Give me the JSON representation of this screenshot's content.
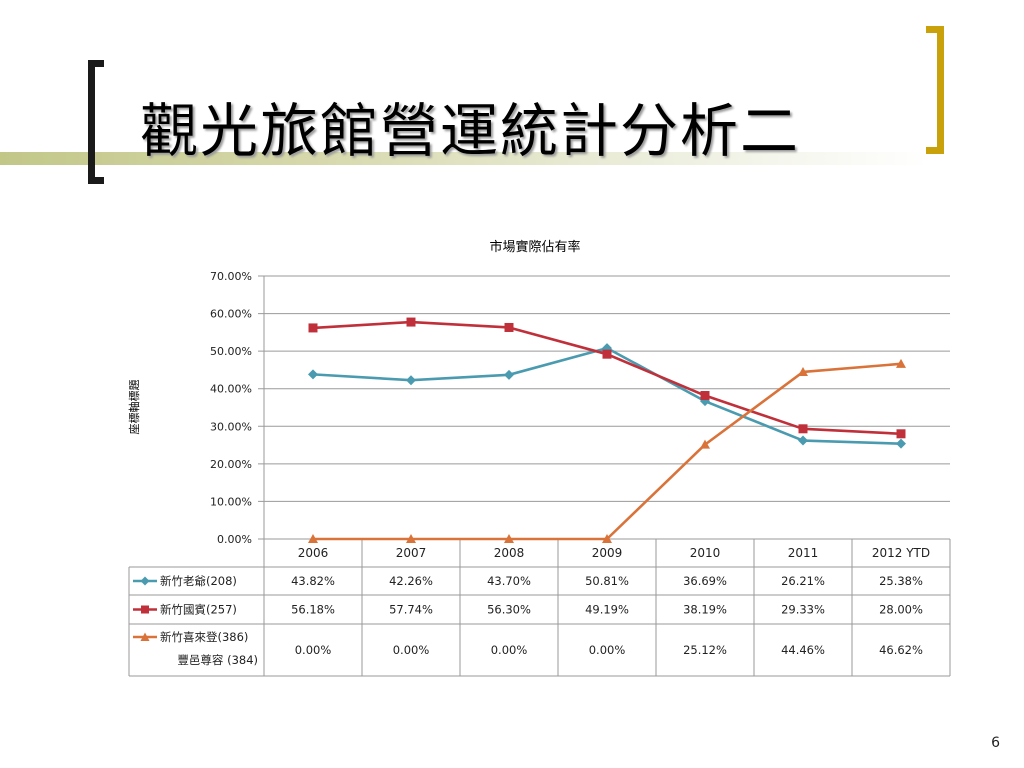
{
  "slide": {
    "title": "觀光旅館營運統計分析二",
    "page_number": "6",
    "accent_gold": "#c9a10a",
    "bracket_dark": "#1a1a1a"
  },
  "chart_data": {
    "type": "line",
    "title": "市場實際佔有率",
    "ylabel": "座標軸標題",
    "xlabel": "",
    "ylim": [
      0,
      70
    ],
    "y_tick_step": 10,
    "y_tick_labels": [
      "0.00%",
      "10.00%",
      "20.00%",
      "30.00%",
      "40.00%",
      "50.00%",
      "60.00%",
      "70.00%"
    ],
    "grid": true,
    "categories": [
      "2006",
      "2007",
      "2008",
      "2009",
      "2010",
      "2011",
      "2012 YTD"
    ],
    "series": [
      {
        "name": "新竹老爺(208)",
        "color": "#4a9bb0",
        "marker": "diamond",
        "values": [
          43.82,
          42.26,
          43.7,
          50.81,
          36.69,
          26.21,
          25.38
        ],
        "labels": [
          "43.82%",
          "42.26%",
          "43.70%",
          "50.81%",
          "36.69%",
          "26.21%",
          "25.38%"
        ]
      },
      {
        "name": "新竹國賓(257)",
        "color": "#c0303a",
        "marker": "square",
        "values": [
          56.18,
          57.74,
          56.3,
          49.19,
          38.19,
          29.33,
          28.0
        ],
        "labels": [
          "56.18%",
          "57.74%",
          "56.30%",
          "49.19%",
          "38.19%",
          "29.33%",
          "28.00%"
        ]
      },
      {
        "name": "新竹喜來登(386)",
        "name_line2": "豐邑尊容 (384)",
        "color": "#d9733a",
        "marker": "triangle",
        "values": [
          0.0,
          0.0,
          0.0,
          0.0,
          25.12,
          44.46,
          46.62
        ],
        "labels": [
          "0.00%",
          "0.00%",
          "0.00%",
          "0.00%",
          "25.12%",
          "44.46%",
          "46.62%"
        ]
      }
    ]
  }
}
